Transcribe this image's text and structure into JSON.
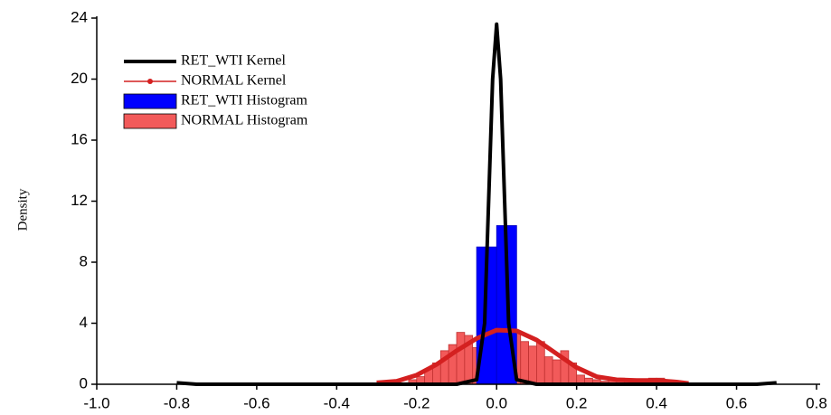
{
  "chart_data": {
    "type": "histogram",
    "ylabel": "Density",
    "xlim": [
      -1.0,
      0.8
    ],
    "xticks": [
      {
        "value": -1.0,
        "label": "-1.0"
      },
      -0.8,
      -0.6,
      -0.4,
      -0.2,
      {
        "value": 0,
        "label": "0.0"
      },
      0.2,
      0.4,
      0.6,
      0.8
    ],
    "ylim": [
      0,
      24
    ],
    "yticks": [
      0,
      4,
      8,
      12,
      16,
      20,
      24
    ],
    "legend": "upper left",
    "series": [
      {
        "name": "RET_WTI Kernel",
        "kind": "line",
        "color": "#000000",
        "x": [
          -0.8,
          -0.75,
          -0.1,
          -0.05,
          -0.03,
          -0.02,
          -0.01,
          0,
          0.01,
          0.02,
          0.03,
          0.05,
          0.1,
          0.65,
          0.7
        ],
        "values": [
          0.1,
          0,
          0,
          0.3,
          4,
          12,
          20,
          23.6,
          20,
          12,
          4,
          0.3,
          0,
          0,
          0.1
        ]
      },
      {
        "name": "NORMAL Kernel",
        "kind": "line",
        "marker": true,
        "color": "#d42020",
        "x": [
          -0.3,
          -0.25,
          -0.2,
          -0.15,
          -0.1,
          -0.05,
          0,
          0.05,
          0.1,
          0.15,
          0.2,
          0.25,
          0.3,
          0.35,
          0.4,
          0.45,
          0.48
        ],
        "values": [
          0.1,
          0.2,
          0.6,
          1.3,
          2.2,
          3.0,
          3.55,
          3.5,
          2.9,
          2.0,
          1.1,
          0.5,
          0.3,
          0.25,
          0.25,
          0.15,
          0.05
        ]
      },
      {
        "name": "RET_WTI Histogram",
        "kind": "bar",
        "color": "#0000ff",
        "bins": [
          -0.05,
          0,
          0.05
        ],
        "values": [
          9,
          10.4
        ]
      },
      {
        "name": "NORMAL Histogram",
        "kind": "bar",
        "color": "#f25a5a",
        "bins": [
          -0.28,
          -0.26,
          -0.24,
          -0.22,
          -0.2,
          -0.18,
          -0.16,
          -0.14,
          -0.12,
          -0.1,
          -0.08,
          -0.06,
          -0.04,
          -0.02,
          0,
          0.02,
          0.04,
          0.06,
          0.08,
          0.1,
          0.12,
          0.14,
          0.16,
          0.18,
          0.2,
          0.22,
          0.24,
          0.26,
          0.28,
          0.3,
          0.32,
          0.34,
          0.36,
          0.38,
          0.4,
          0.42,
          0.44,
          0.46
        ],
        "values": [
          0.05,
          0.1,
          0.1,
          0.3,
          0.5,
          1.0,
          1.4,
          2.2,
          2.6,
          3.4,
          3.2,
          2.4,
          2.8,
          3.0,
          3.3,
          3.5,
          3.4,
          2.8,
          2.5,
          2.8,
          1.8,
          1.6,
          2.2,
          1.4,
          0.6,
          0.4,
          0.3,
          0.2,
          0.4,
          0.4,
          0.2,
          0.1,
          0.1,
          0.4,
          0.4,
          0.2,
          0.1
        ]
      }
    ]
  }
}
